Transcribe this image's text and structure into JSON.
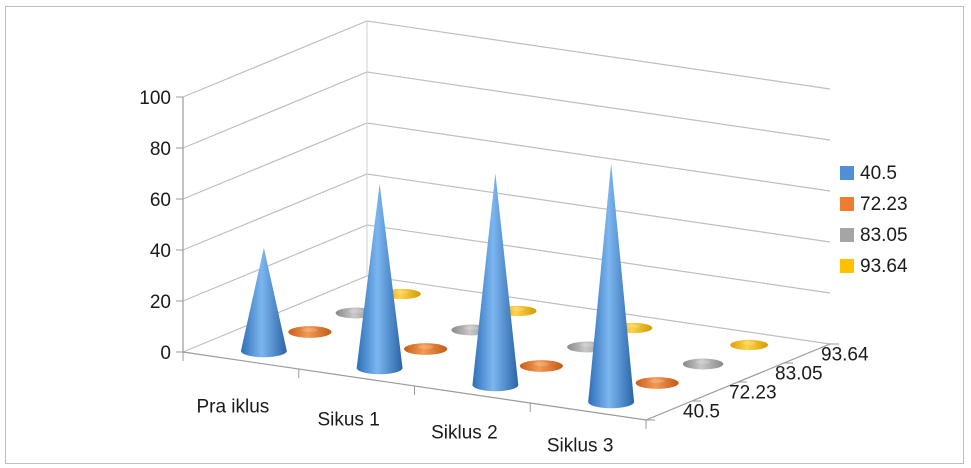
{
  "chart_data": {
    "type": "3d-cone",
    "title": "",
    "xlabel": "",
    "ylabel": "",
    "categories": [
      "Pra iklus",
      "Sikus 1",
      "Siklus 2",
      "Siklus 3"
    ],
    "series": [
      {
        "name": "40.5",
        "values": [
          40.5,
          72.23,
          83.05,
          93.64
        ],
        "color": "#4f8fd4"
      },
      {
        "name": "72.23",
        "values": [
          0,
          0,
          0,
          0
        ],
        "color": "#ed7d31"
      },
      {
        "name": "83.05",
        "values": [
          0,
          0,
          0,
          0
        ],
        "color": "#a5a5a5"
      },
      {
        "name": "93.64",
        "values": [
          0,
          0,
          0,
          0
        ],
        "color": "#ffc000"
      }
    ],
    "y_ticks": [
      "0",
      "20",
      "40",
      "60",
      "80",
      "100"
    ],
    "ylim": [
      0,
      100
    ],
    "depth_labels": [
      "40.5",
      "72.23",
      "83.05",
      "93.64"
    ],
    "legend_position": "right",
    "grid": true
  }
}
